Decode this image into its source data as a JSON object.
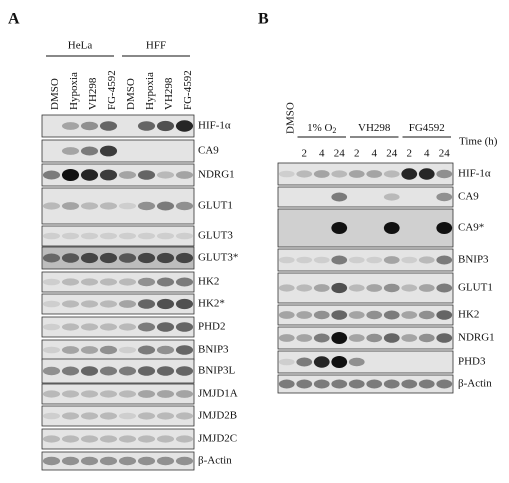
{
  "panel_a": {
    "label": "A",
    "groups": [
      {
        "label": "HeLa"
      },
      {
        "label": "HFF"
      }
    ],
    "lanes": [
      "DMSO",
      "Hypoxia",
      "VH298",
      "FG-4592",
      "DMSO",
      "Hypoxia",
      "VH298",
      "FG-4592"
    ],
    "blots": [
      "HIF-1α",
      "CA9",
      "NDRG1",
      "GLUT1",
      "GLUT3",
      "GLUT3*",
      "HK2",
      "HK2*",
      "PHD2",
      "BNIP3",
      "BNIP3L",
      "JMJD1A",
      "JMJD2B",
      "JMJD2C",
      "β-Actin"
    ]
  },
  "panel_b": {
    "label": "B",
    "control_lane": "DMSO",
    "groups": [
      {
        "label": "1% O",
        "sub": "2"
      },
      {
        "label": "VH298"
      },
      {
        "label": "FG4592"
      }
    ],
    "times": [
      2,
      4,
      24,
      2,
      4,
      24,
      2,
      4,
      24
    ],
    "time_label": "Time (h)",
    "blots": [
      "HIF-1α",
      "CA9",
      "CA9*",
      "BNIP3",
      "GLUT1",
      "HK2",
      "NDRG1",
      "PHD3",
      "β-Actin"
    ]
  }
}
